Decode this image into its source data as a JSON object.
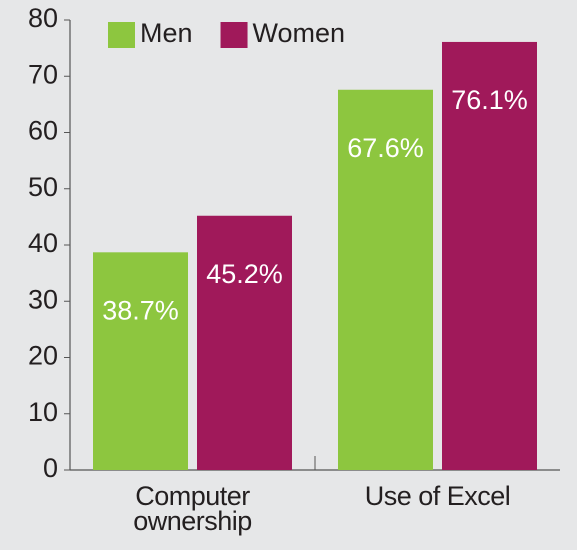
{
  "chart_data": {
    "type": "bar",
    "categories": [
      "Computer ownership",
      "Use of Excel"
    ],
    "series": [
      {
        "name": "Men",
        "color": "#8dc63f",
        "values": [
          38.7,
          67.6
        ],
        "value_labels": [
          "38.7%",
          "67.6%"
        ]
      },
      {
        "name": "Women",
        "color": "#a0195a",
        "values": [
          45.2,
          76.1
        ],
        "value_labels": [
          "45.2%",
          "76.1%"
        ]
      }
    ],
    "ylim": [
      0,
      80
    ],
    "yticks": [
      0,
      10,
      20,
      30,
      40,
      50,
      60,
      70,
      80
    ],
    "legend": "top",
    "background": "#e6e7e8"
  }
}
